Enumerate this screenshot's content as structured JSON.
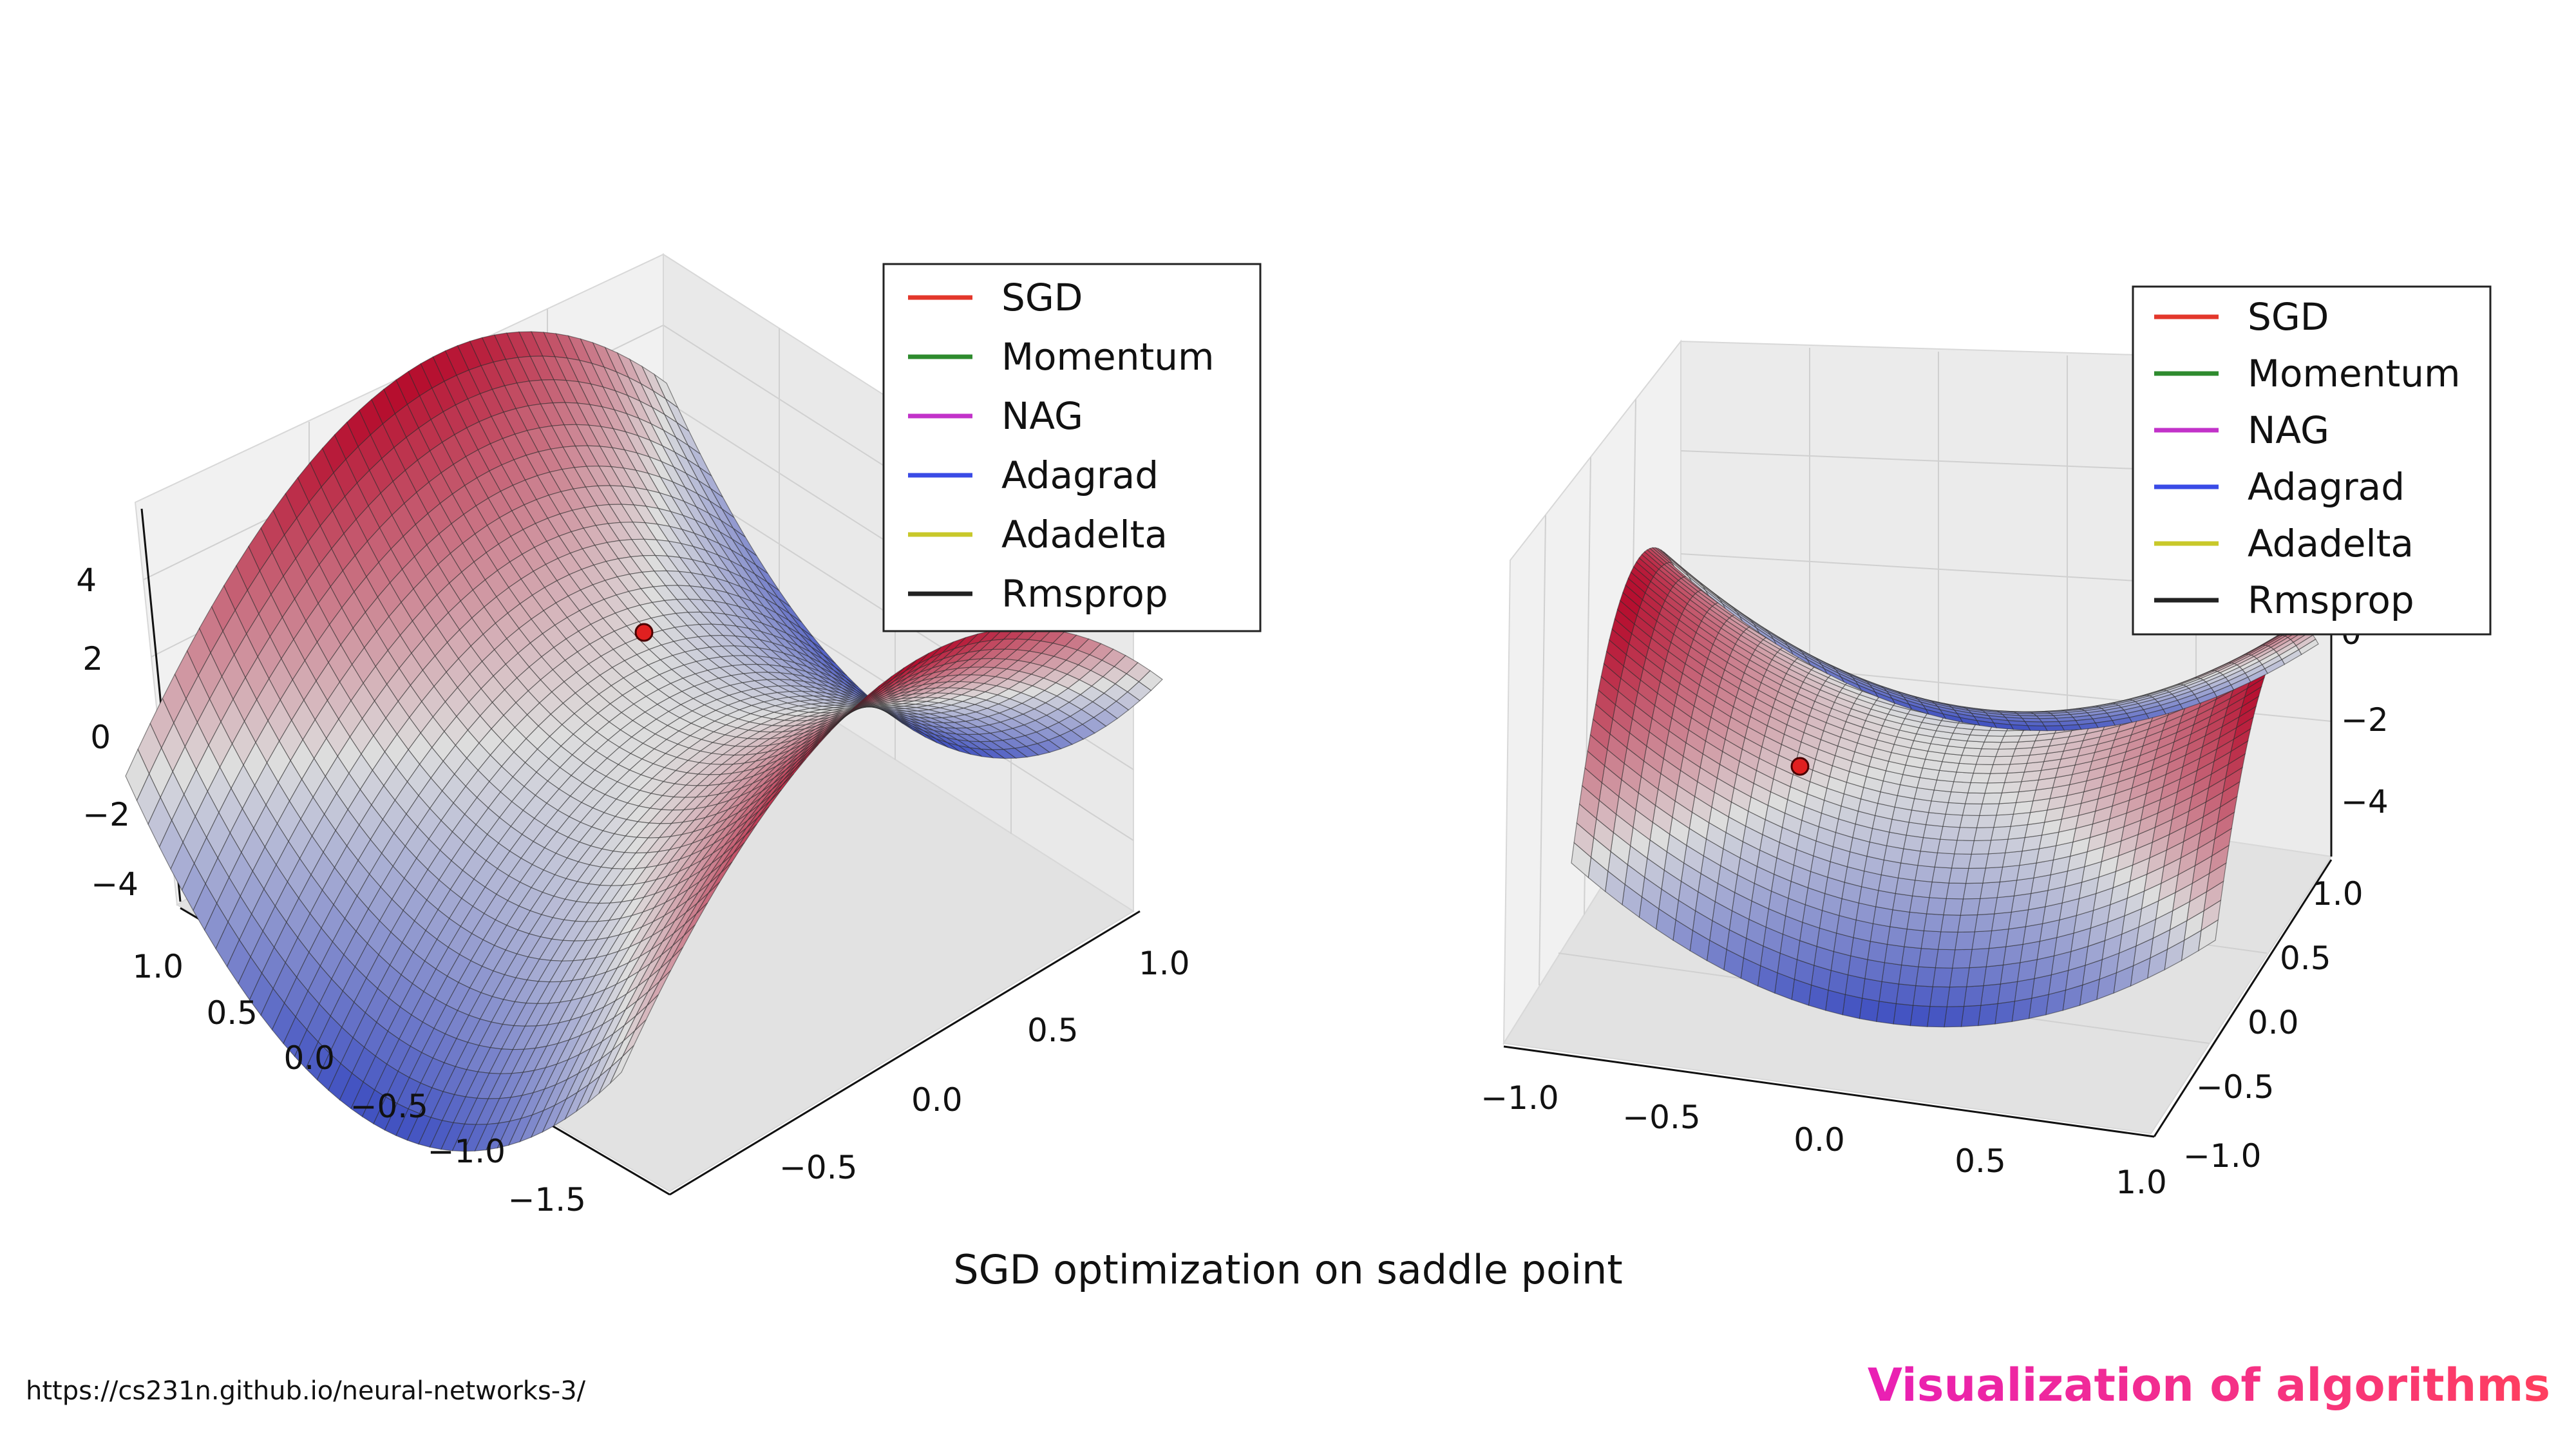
{
  "caption": "SGD optimization on saddle point",
  "source_url": "https://cs231n.github.io/neural-networks-3/",
  "slide_title": "Visualization of algorithms",
  "slide_title_gradient": [
    "#e91fb5",
    "#ff3f5e"
  ],
  "chart_data": [
    {
      "type": "surface3d",
      "function": "z = x^2 - y^2",
      "colormap": [
        "#3b4cc0",
        "#dddddd",
        "#b40426"
      ],
      "marker_color": "#e02020",
      "z_ticks": [
        "4",
        "2",
        "0",
        "−2",
        "−4"
      ],
      "x_ticks": [
        "1.0",
        "0.5",
        "0.0",
        "−0.5",
        "−1.0",
        "−1.5"
      ],
      "y_ticks": [
        "1.0",
        "0.5",
        "0.0",
        "−0.5"
      ],
      "legend": [
        "SGD",
        "Momentum",
        "NAG",
        "Adagrad",
        "Adadelta",
        "Rmsprop"
      ],
      "legend_colors": [
        "#e3372b",
        "#2e8b2e",
        "#c232c9",
        "#3a4be6",
        "#c8c82a",
        "#222222"
      ]
    },
    {
      "type": "surface3d",
      "function": "z = x^2 - y^2",
      "colormap": [
        "#3b4cc0",
        "#dddddd",
        "#b40426"
      ],
      "marker_color": "#e02020",
      "z_ticks": [
        "0",
        "−2",
        "−4"
      ],
      "x_ticks": [
        "−1.0",
        "−0.5",
        "0.0",
        "0.5",
        "1.0"
      ],
      "y_ticks": [
        "1.0",
        "0.5",
        "0.0",
        "−0.5",
        "−1.0"
      ],
      "legend": [
        "SGD",
        "Momentum",
        "NAG",
        "Adagrad",
        "Adadelta",
        "Rmsprop"
      ],
      "legend_colors": [
        "#e3372b",
        "#2e8b2e",
        "#c232c9",
        "#3a4be6",
        "#c8c82a",
        "#222222"
      ]
    }
  ]
}
